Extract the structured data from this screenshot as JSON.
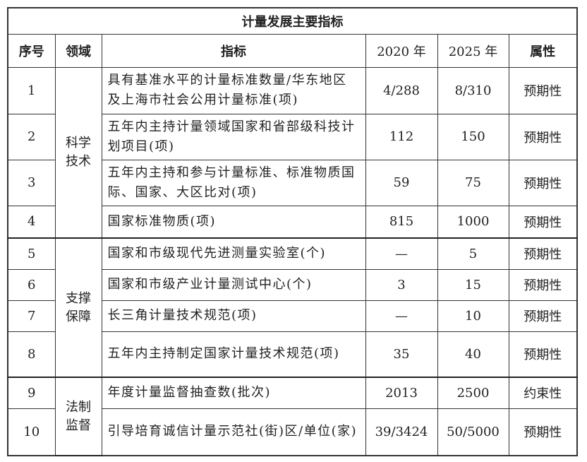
{
  "title": "计量发展主要指标",
  "headers": [
    "序号",
    "领域",
    "指标",
    "2020 年",
    "2025 年",
    "属性"
  ],
  "domains": [
    "科学技术",
    "支撑保障",
    "法制监督"
  ],
  "rows": [
    {
      "no": "1",
      "indicator": "具有基准水平的计量标准数量/华东地区及上海市社会公用计量标准(项)",
      "y2020": "4/288",
      "y2025": "8/310",
      "attr": "预期性"
    },
    {
      "no": "2",
      "indicator": "五年内主持计量领域国家和省部级科技计划项目(项)",
      "y2020": "112",
      "y2025": "150",
      "attr": "预期性"
    },
    {
      "no": "3",
      "indicator": "五年内主持和参与计量标准、标准物质国际、国家、大区比对(项)",
      "y2020": "59",
      "y2025": "75",
      "attr": "预期性"
    },
    {
      "no": "4",
      "indicator": "国家标准物质(项)",
      "y2020": "815",
      "y2025": "1000",
      "attr": "预期性"
    },
    {
      "no": "5",
      "indicator": "国家和市级现代先进测量实验室(个)",
      "y2020": "—",
      "y2025": "5",
      "attr": "预期性"
    },
    {
      "no": "6",
      "indicator": "国家和市级产业计量测试中心(个)",
      "y2020": "3",
      "y2025": "15",
      "attr": "预期性"
    },
    {
      "no": "7",
      "indicator": "长三角计量技术规范(项)",
      "y2020": "—",
      "y2025": "10",
      "attr": "预期性"
    },
    {
      "no": "8",
      "indicator": "五年内主持制定国家计量技术规范(项)",
      "y2020": "35",
      "y2025": "40",
      "attr": "预期性"
    },
    {
      "no": "9",
      "indicator": "年度计量监督抽查数(批次)",
      "y2020": "2013",
      "y2025": "2500",
      "attr": "约束性"
    },
    {
      "no": "10",
      "indicator": "引导培育诚信计量示范社(街)区/单位(家)",
      "y2020": "39/3424",
      "y2025": "50/5000",
      "attr": "预期性"
    }
  ]
}
